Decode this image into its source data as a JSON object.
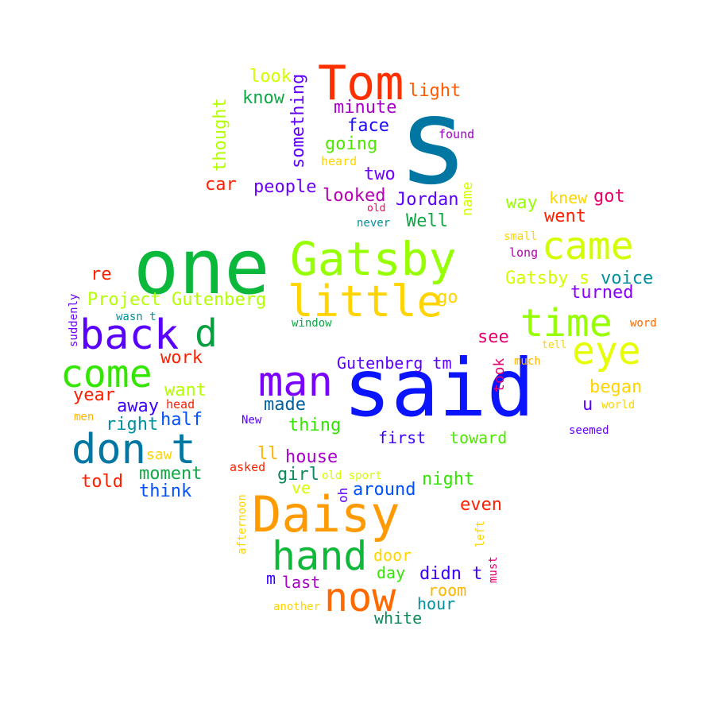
{
  "words": [
    {
      "text": "s",
      "color": "#0076a3"
    },
    {
      "text": "said",
      "color": "#0a14ff"
    },
    {
      "text": "one",
      "color": "#0ab93c"
    },
    {
      "text": "Tom",
      "color": "#ff3000"
    },
    {
      "text": "Gatsby",
      "color": "#96ff00"
    },
    {
      "text": "Daisy",
      "color": "#ff9a00"
    },
    {
      "text": "little",
      "color": "#ffd400"
    },
    {
      "text": "came",
      "color": "#d2ff00"
    },
    {
      "text": "time",
      "color": "#96ff00"
    },
    {
      "text": "eye",
      "color": "#e6ff00"
    },
    {
      "text": "man",
      "color": "#7a00ff"
    },
    {
      "text": "back",
      "color": "#5a00ff"
    },
    {
      "text": "d",
      "color": "#06a040"
    },
    {
      "text": "come",
      "color": "#32e600"
    },
    {
      "text": "don t",
      "color": "#0076a3"
    },
    {
      "text": "hand",
      "color": "#10b83a"
    },
    {
      "text": "now",
      "color": "#ff6a00"
    },
    {
      "text": "look",
      "color": "#d2ff00"
    },
    {
      "text": "know",
      "color": "#10a846"
    },
    {
      "text": "something",
      "color": "#6000ff"
    },
    {
      "text": "thought",
      "color": "#b4ff00"
    },
    {
      "text": "minute",
      "color": "#a800c8"
    },
    {
      "text": "light",
      "color": "#ff5a00"
    },
    {
      "text": "face",
      "color": "#1a0aff"
    },
    {
      "text": "found",
      "color": "#a000c8"
    },
    {
      "text": "going",
      "color": "#50e600"
    },
    {
      "text": "heard",
      "color": "#ffd400"
    },
    {
      "text": "two",
      "color": "#7000ff"
    },
    {
      "text": "car",
      "color": "#ff1e00"
    },
    {
      "text": "people",
      "color": "#6a00ff"
    },
    {
      "text": "looked",
      "color": "#b400b4"
    },
    {
      "text": "Jordan",
      "color": "#5a00ff"
    },
    {
      "text": "name",
      "color": "#d2ff00"
    },
    {
      "text": "old",
      "color": "#ff0050"
    },
    {
      "text": "never",
      "color": "#0090a0"
    },
    {
      "text": "Well",
      "color": "#10a846"
    },
    {
      "text": "way",
      "color": "#96ff00"
    },
    {
      "text": "knew",
      "color": "#ffd400"
    },
    {
      "text": "got",
      "color": "#e6006e"
    },
    {
      "text": "went",
      "color": "#ff1e00"
    },
    {
      "text": "small",
      "color": "#ffd400"
    },
    {
      "text": "long",
      "color": "#b400b4"
    },
    {
      "text": "re",
      "color": "#ff1e00"
    },
    {
      "text": "Project Gutenberg",
      "color": "#b4ff00"
    },
    {
      "text": "go",
      "color": "#ffd400"
    },
    {
      "text": "Gatsby s",
      "color": "#d2ff00"
    },
    {
      "text": "voice",
      "color": "#0090a0"
    },
    {
      "text": "turned",
      "color": "#8a00ff"
    },
    {
      "text": "suddenly",
      "color": "#6a00ff"
    },
    {
      "text": "wasn t",
      "color": "#0090a0"
    },
    {
      "text": "window",
      "color": "#10a846"
    },
    {
      "text": "word",
      "color": "#ff6a00"
    },
    {
      "text": "tell",
      "color": "#ffd400"
    },
    {
      "text": "see",
      "color": "#e6006e"
    },
    {
      "text": "work",
      "color": "#ff1e00"
    },
    {
      "text": "Gutenberg tm",
      "color": "#5a00ff"
    },
    {
      "text": "took",
      "color": "#e6006e"
    },
    {
      "text": "much",
      "color": "#ffb400"
    },
    {
      "text": "year",
      "color": "#ff1e00"
    },
    {
      "text": "want",
      "color": "#b4ff00"
    },
    {
      "text": "began",
      "color": "#ffd400"
    },
    {
      "text": "head",
      "color": "#ff1e00"
    },
    {
      "text": "away",
      "color": "#3c00ff"
    },
    {
      "text": "u",
      "color": "#5a00ff"
    },
    {
      "text": "world",
      "color": "#ffd400"
    },
    {
      "text": "men",
      "color": "#ffb400"
    },
    {
      "text": "right",
      "color": "#0090a0"
    },
    {
      "text": "half",
      "color": "#0050ff"
    },
    {
      "text": "New",
      "color": "#5a00ff"
    },
    {
      "text": "made",
      "color": "#0060a0"
    },
    {
      "text": "thing",
      "color": "#32e600"
    },
    {
      "text": "first",
      "color": "#3c00ff"
    },
    {
      "text": "toward",
      "color": "#50e600"
    },
    {
      "text": "seemed",
      "color": "#6000ff"
    },
    {
      "text": "saw",
      "color": "#ffd400"
    },
    {
      "text": "ll",
      "color": "#ffb400"
    },
    {
      "text": "house",
      "color": "#a800c8"
    },
    {
      "text": "asked",
      "color": "#ff1e00"
    },
    {
      "text": "moment",
      "color": "#10a846"
    },
    {
      "text": "girl",
      "color": "#0a8a5a"
    },
    {
      "text": "old sport",
      "color": "#d2ff00"
    },
    {
      "text": "night",
      "color": "#32e600"
    },
    {
      "text": "told",
      "color": "#ff1e00"
    },
    {
      "text": "think",
      "color": "#0050ff"
    },
    {
      "text": "ve",
      "color": "#d2ff00"
    },
    {
      "text": "oh",
      "color": "#6000ff"
    },
    {
      "text": "around",
      "color": "#0050ff"
    },
    {
      "text": "even",
      "color": "#ff1e00"
    },
    {
      "text": "afternoon",
      "color": "#ffd400"
    },
    {
      "text": "left",
      "color": "#ffd400"
    },
    {
      "text": "door",
      "color": "#ffd400"
    },
    {
      "text": "day",
      "color": "#32e600"
    },
    {
      "text": "didn t",
      "color": "#3c00ff"
    },
    {
      "text": "must",
      "color": "#e6006e"
    },
    {
      "text": "m",
      "color": "#3c00ff"
    },
    {
      "text": "last",
      "color": "#a800c8"
    },
    {
      "text": "room",
      "color": "#ffb400"
    },
    {
      "text": "hour",
      "color": "#0090a0"
    },
    {
      "text": "another",
      "color": "#ffd400"
    },
    {
      "text": "white",
      "color": "#0a8a5a"
    }
  ]
}
